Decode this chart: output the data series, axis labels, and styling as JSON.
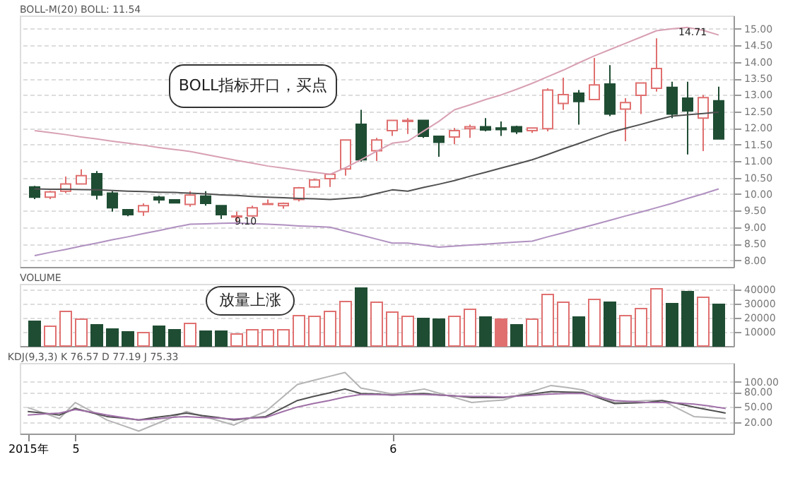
{
  "chart_data": [
    {
      "type": "candlestick",
      "title": "BOLL-M(20)  BOLL: 11.54",
      "categories": [
        null,
        null,
        null,
        null,
        null,
        null,
        null,
        null,
        null,
        null,
        null,
        null,
        null,
        null,
        null,
        null,
        null,
        null,
        null,
        null,
        null,
        null,
        null,
        null,
        null,
        null,
        null,
        null,
        null,
        null,
        null,
        null,
        null,
        null,
        null,
        null,
        null,
        null,
        null,
        null,
        null,
        null,
        null,
        null,
        null
      ],
      "ohlc": [
        [
          10.22,
          10.25,
          9.85,
          9.91
        ],
        [
          9.91,
          10.1,
          9.85,
          10.07
        ],
        [
          10.09,
          10.53,
          10.03,
          10.31
        ],
        [
          10.31,
          10.75,
          10.31,
          10.56
        ],
        [
          10.62,
          10.7,
          9.84,
          9.97
        ],
        [
          10.03,
          10.09,
          9.47,
          9.59
        ],
        [
          9.53,
          9.53,
          9.33,
          9.38
        ],
        [
          9.47,
          9.72,
          9.34,
          9.65
        ],
        [
          9.91,
          9.95,
          9.72,
          9.83
        ],
        [
          9.83,
          9.83,
          9.74,
          9.74
        ],
        [
          9.69,
          10.09,
          9.62,
          9.97
        ],
        [
          9.94,
          10.09,
          9.65,
          9.72
        ],
        [
          9.65,
          9.65,
          9.25,
          9.38
        ],
        [
          9.31,
          9.47,
          9.1,
          9.34
        ],
        [
          9.34,
          9.65,
          9.31,
          9.59
        ],
        [
          9.69,
          9.84,
          9.69,
          9.71
        ],
        [
          9.65,
          9.75,
          9.56,
          9.72
        ],
        [
          9.84,
          10.22,
          9.78,
          10.19
        ],
        [
          10.22,
          10.47,
          10.19,
          10.43
        ],
        [
          10.47,
          10.62,
          10.22,
          10.6
        ],
        [
          10.76,
          11.64,
          10.56,
          11.64
        ],
        [
          12.11,
          12.55,
          10.98,
          11.04
        ],
        [
          11.31,
          11.7,
          11.0,
          11.64
        ],
        [
          11.92,
          12.23,
          11.76,
          12.23
        ],
        [
          12.2,
          12.3,
          11.82,
          12.23
        ],
        [
          12.23,
          12.23,
          11.7,
          11.75
        ],
        [
          11.75,
          11.75,
          11.13,
          11.57
        ],
        [
          11.73,
          12.0,
          11.51,
          11.92
        ],
        [
          11.98,
          12.1,
          11.7,
          12.04
        ],
        [
          12.04,
          12.3,
          11.9,
          11.94
        ],
        [
          12.0,
          12.2,
          11.76,
          11.95
        ],
        [
          12.04,
          12.07,
          11.82,
          11.89
        ],
        [
          11.92,
          12.0,
          11.85,
          12.0
        ],
        [
          11.98,
          13.2,
          11.9,
          13.15
        ],
        [
          12.74,
          13.52,
          12.55,
          13.01
        ],
        [
          13.05,
          13.15,
          12.1,
          12.8
        ],
        [
          12.86,
          14.12,
          12.86,
          13.3
        ],
        [
          13.33,
          13.9,
          12.36,
          12.42
        ],
        [
          12.57,
          12.9,
          11.6,
          12.77
        ],
        [
          12.99,
          13.36,
          12.42,
          13.36
        ],
        [
          13.2,
          14.71,
          13.1,
          13.8
        ],
        [
          13.23,
          13.4,
          12.3,
          12.42
        ],
        [
          12.9,
          13.4,
          11.2,
          12.52
        ],
        [
          12.3,
          13.0,
          11.3,
          12.92
        ],
        [
          12.82,
          13.25,
          11.67,
          11.67
        ]
      ],
      "colors": [
        "#1f4d33",
        "#e07070",
        "#e07070",
        "#e07070",
        "#1f4d33",
        "#1f4d33",
        "#1f4d33",
        "#e07070",
        "#1f4d33",
        "#1f4d33",
        "#e07070",
        "#1f4d33",
        "#1f4d33",
        "#e07070",
        "#e07070",
        "#e07070",
        "#e07070",
        "#e07070",
        "#e07070",
        "#e07070",
        "#e07070",
        "#1f4d33",
        "#e07070",
        "#e07070",
        "#e07070",
        "#1f4d33",
        "#1f4d33",
        "#e07070",
        "#e07070",
        "#1f4d33",
        "#1f4d33",
        "#1f4d33",
        "#e07070",
        "#e07070",
        "#e07070",
        "#1f4d33",
        "#e07070",
        "#1f4d33",
        "#e07070",
        "#e07070",
        "#e07070",
        "#1f4d33",
        "#1f4d33",
        "#e07070",
        "#1f4d33"
      ],
      "series": [
        {
          "type": "line",
          "color": "#d8a0b4",
          "values": [
            11.92,
            11.86,
            11.8,
            11.73,
            11.67,
            11.6,
            11.54,
            11.48,
            11.41,
            11.35,
            11.29,
            11.2,
            11.11,
            11.02,
            10.94,
            10.85,
            10.79,
            10.72,
            10.66,
            10.6,
            10.8,
            11.04,
            11.3,
            11.54,
            11.6,
            11.9,
            12.2,
            12.55,
            12.7,
            12.86,
            13.0,
            13.17,
            13.35,
            13.55,
            13.75,
            13.97,
            14.18,
            14.37,
            14.56,
            14.75,
            14.94,
            15.0,
            15.04,
            14.95,
            14.81
          ]
        },
        {
          "type": "line",
          "color": "#505050",
          "values": [
            10.16,
            10.15,
            10.15,
            10.14,
            10.13,
            10.11,
            10.09,
            10.08,
            10.06,
            10.05,
            10.03,
            10.01,
            9.98,
            9.96,
            9.93,
            9.91,
            9.89,
            9.87,
            9.86,
            9.84,
            9.87,
            9.91,
            10.02,
            10.13,
            10.09,
            10.2,
            10.3,
            10.41,
            10.54,
            10.66,
            10.79,
            10.91,
            11.04,
            11.2,
            11.37,
            11.53,
            11.7,
            11.86,
            11.99,
            12.11,
            12.24,
            12.36,
            12.4,
            12.44,
            12.48
          ]
        },
        {
          "type": "line",
          "color": "#b090c0",
          "values": [
            8.14,
            8.24,
            8.33,
            8.43,
            8.52,
            8.62,
            8.71,
            8.81,
            8.9,
            9.0,
            9.09,
            9.1,
            9.12,
            9.13,
            9.11,
            9.09,
            9.07,
            9.04,
            9.02,
            9.0,
            8.88,
            8.76,
            8.64,
            8.52,
            8.52,
            8.46,
            8.4,
            8.43,
            8.46,
            8.49,
            8.52,
            8.55,
            8.58,
            8.71,
            8.83,
            8.96,
            9.08,
            9.21,
            9.34,
            9.46,
            9.59,
            9.72,
            9.87,
            10.01,
            10.16
          ]
        }
      ],
      "ylim": [
        7.8,
        15.4
      ],
      "yticks": [
        {
          "value": 8,
          "label": "8.00"
        },
        {
          "value": 8.5,
          "label": "8.50"
        },
        {
          "value": 9,
          "label": "9.00"
        },
        {
          "value": 9.5,
          "label": "9.50"
        },
        {
          "value": 10,
          "label": "10.00"
        },
        {
          "value": 10.5,
          "label": "10.50"
        },
        {
          "value": 11,
          "label": "11.00"
        },
        {
          "value": 11.5,
          "label": "11.50"
        },
        {
          "value": 12,
          "label": "12.00"
        },
        {
          "value": 12.5,
          "label": "12.50"
        },
        {
          "value": 13,
          "label": "13.00"
        },
        {
          "value": 13.5,
          "label": "13.50"
        },
        {
          "value": 14,
          "label": "14.00"
        },
        {
          "value": 14.5,
          "label": "14.50"
        },
        {
          "value": 15,
          "label": "15.00"
        }
      ],
      "grid": "y",
      "tick_labels": "y",
      "annotations": [
        "BOLL指标开口，买点",
        "9.10",
        "14.71"
      ]
    },
    {
      "type": "bar",
      "title": "VOLUME",
      "categories": [
        null,
        null,
        null,
        null,
        null,
        null,
        null,
        null,
        null,
        null,
        null,
        null,
        null,
        null,
        null,
        null,
        null,
        null,
        null,
        null,
        null,
        null,
        null,
        null,
        null,
        null,
        null,
        null,
        null,
        null,
        null,
        null,
        null,
        null,
        null,
        null,
        null,
        null,
        null,
        null,
        null,
        null,
        null,
        null,
        null
      ],
      "values": [
        17500,
        14000,
        24500,
        19000,
        15000,
        12000,
        10000,
        9500,
        14000,
        11500,
        16000,
        10500,
        10500,
        8500,
        11500,
        11500,
        11500,
        21500,
        21000,
        24500,
        31500,
        41000,
        31000,
        24000,
        21000,
        19500,
        19000,
        21000,
        26000,
        20500,
        19000,
        15000,
        19000,
        36500,
        31000,
        20500,
        33000,
        31000,
        21500,
        26500,
        40500,
        30000,
        38500,
        34500,
        29500
      ],
      "colors": [
        "#1f4d33",
        "#e07070",
        "#e07070",
        "#e07070",
        "#1f4d33",
        "#1f4d33",
        "#1f4d33",
        "#e07070",
        "#1f4d33",
        "#1f4d33",
        "#e07070",
        "#1f4d33",
        "#1f4d33",
        "#e07070",
        "#e07070",
        "#e07070",
        "#e07070",
        "#e07070",
        "#e07070",
        "#e07070",
        "#e07070",
        "#1f4d33",
        "#e07070",
        "#e07070",
        "#e07070",
        "#1f4d33",
        "#1f4d33",
        "#e07070",
        "#e07070",
        "#1f4d33",
        "#e07070",
        "#1f4d33",
        "#e07070",
        "#e07070",
        "#e07070",
        "#1f4d33",
        "#e07070",
        "#1f4d33",
        "#e07070",
        "#e07070",
        "#e07070",
        "#1f4d33",
        "#1f4d33",
        "#e07070",
        "#1f4d33"
      ],
      "ylim": [
        0,
        44000
      ],
      "yticks": [
        10000,
        20000,
        30000,
        40000
      ],
      "grid": "y",
      "tick_labels": "y",
      "annotations": [
        "放量上涨"
      ]
    },
    {
      "type": "line",
      "title": "KDJ(9,3,3)  K 76.57  D 77.19  J 75.33",
      "categories": [
        "2015年",
        null,
        null,
        "5",
        null,
        null,
        null,
        null,
        null,
        null,
        null,
        null,
        null,
        null,
        null,
        null,
        null,
        null,
        null,
        null,
        null,
        null,
        null,
        "6",
        null,
        null,
        null,
        null,
        null,
        null,
        null,
        null,
        null,
        null,
        null,
        null,
        null,
        null,
        null,
        null,
        null,
        null,
        null,
        null,
        null
      ],
      "series": [
        {
          "color": "#b4b4b4",
          "values": [
            49,
            38,
            27,
            59,
            42,
            24,
            13,
            2,
            15,
            28,
            41,
            32,
            23,
            14,
            28,
            41,
            68,
            95,
            103,
            111,
            119,
            88,
            82,
            76,
            81,
            86,
            77,
            68,
            59,
            62,
            64,
            74,
            83,
            93,
            89,
            84,
            72,
            59,
            61,
            63,
            63,
            47,
            31,
            29,
            27
          ]
        },
        {
          "color": "#505050",
          "values": [
            41,
            38,
            34,
            47,
            39,
            31,
            28,
            24,
            29,
            33,
            38,
            33,
            29,
            24,
            28,
            31,
            47,
            63,
            71,
            78,
            86,
            77,
            76,
            74,
            76,
            77,
            74,
            72,
            69,
            69,
            69,
            73,
            77,
            81,
            80,
            79,
            68,
            57,
            58,
            59,
            63,
            57,
            50,
            44,
            38
          ]
        },
        {
          "color": "#a070a8",
          "values": [
            34,
            36,
            38,
            45,
            40,
            34,
            29,
            24,
            26,
            29,
            31,
            29,
            28,
            26,
            28,
            29,
            40,
            50,
            57,
            63,
            70,
            75,
            75,
            74,
            75,
            75,
            74,
            72,
            71,
            71,
            70,
            72,
            74,
            76,
            77,
            77,
            70,
            63,
            61,
            59,
            59,
            58,
            56,
            52,
            47
          ]
        }
      ],
      "ylim": [
        -3,
        138
      ],
      "yticks": [
        {
          "value": 20,
          "label": "20.00"
        },
        {
          "value": 50,
          "label": "50.00"
        },
        {
          "value": 80,
          "label": "80.00"
        },
        {
          "value": 100,
          "label": "100.00"
        }
      ],
      "grid": "y"
    }
  ]
}
